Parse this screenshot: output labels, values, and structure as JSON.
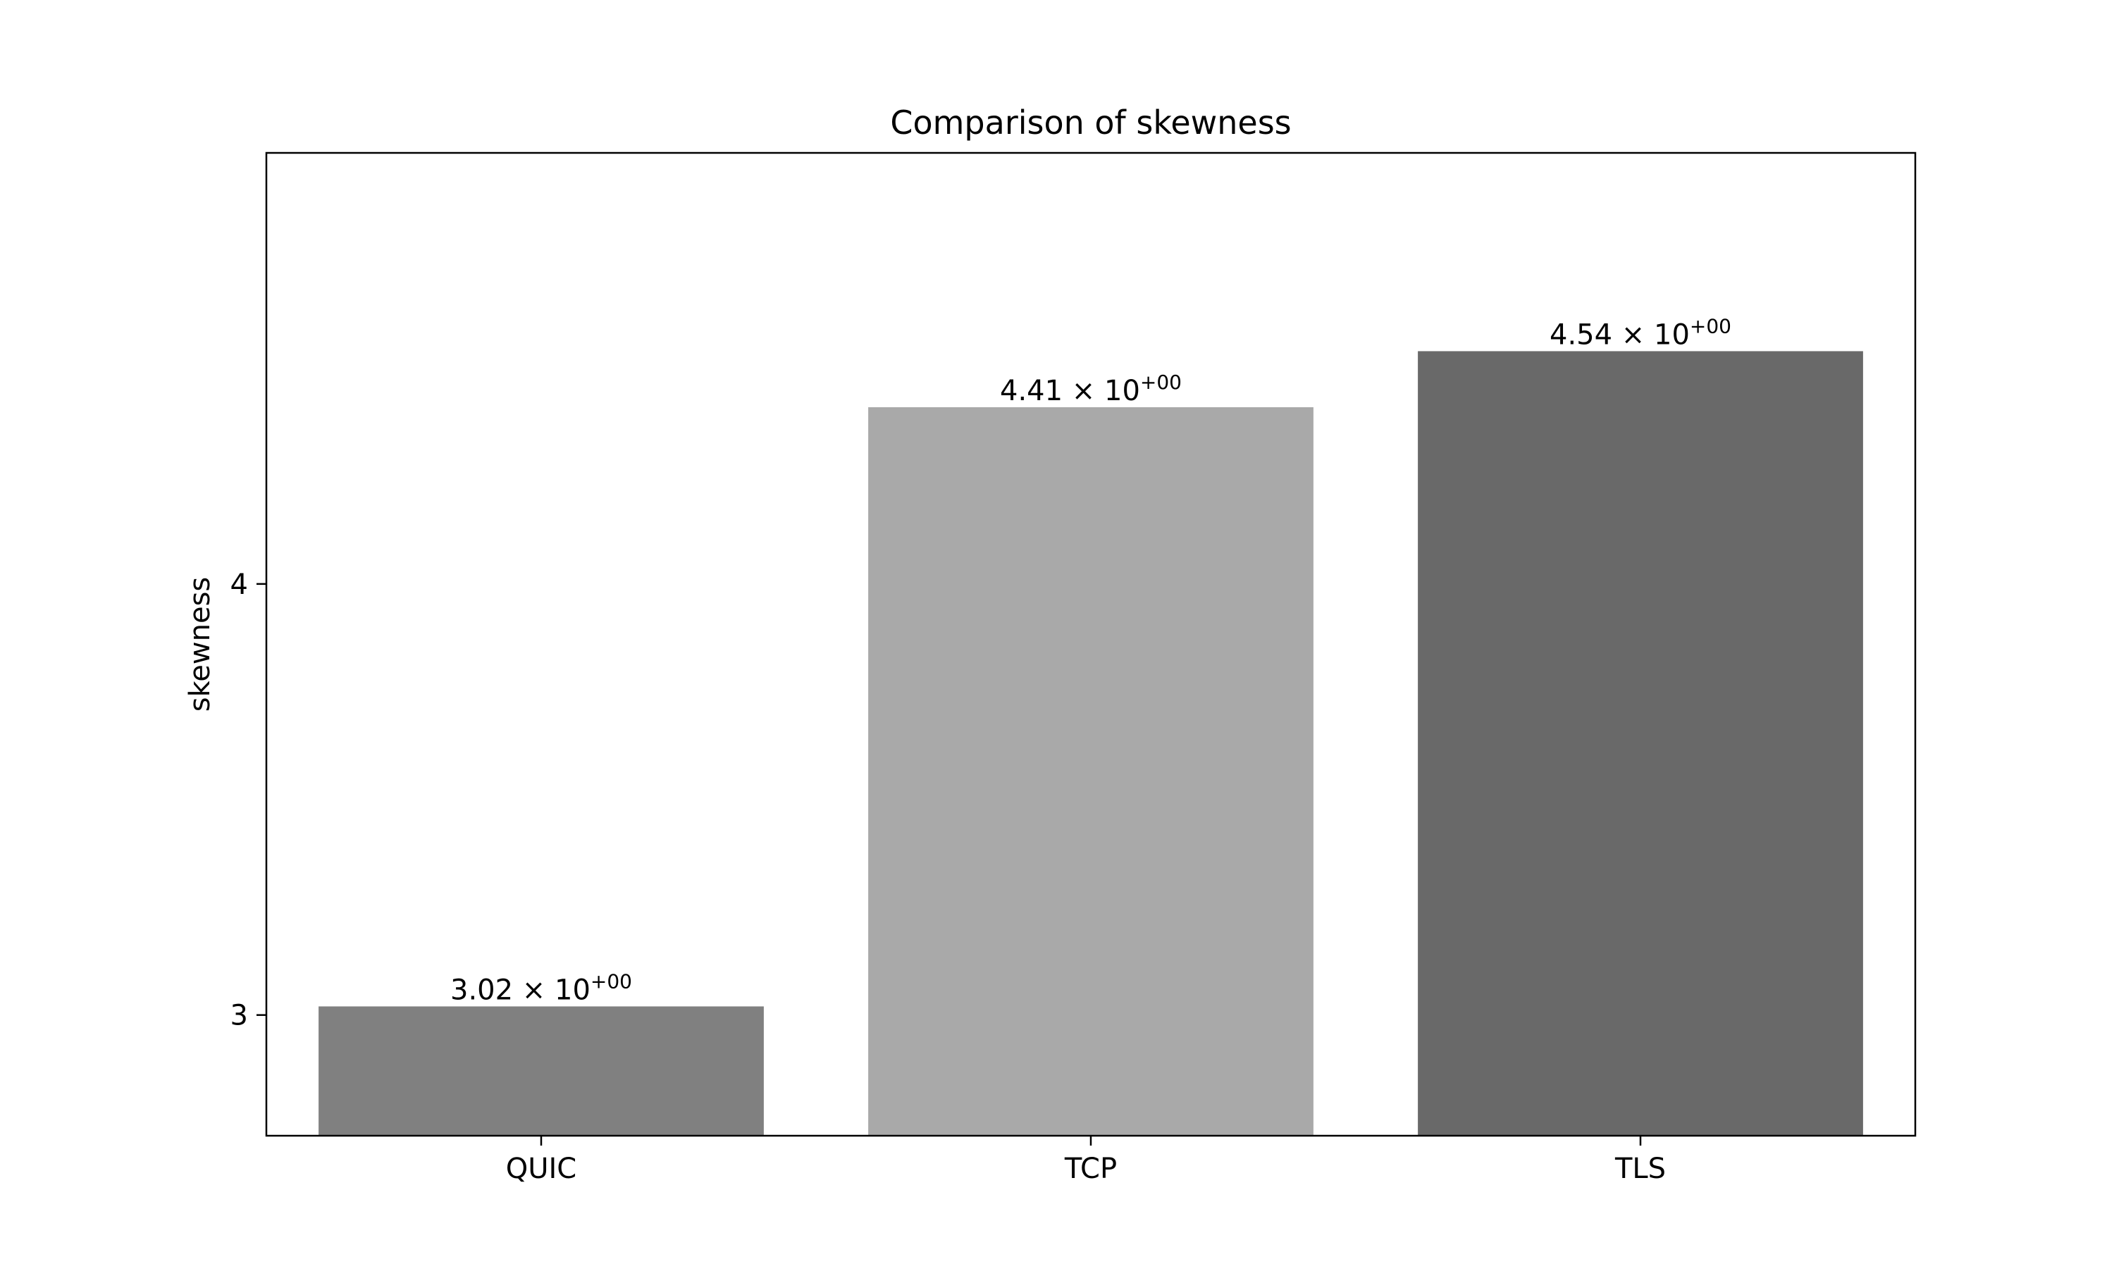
{
  "chart_data": {
    "type": "bar",
    "title": "Comparison of skewness",
    "xlabel": "",
    "ylabel": "skewness",
    "categories": [
      "QUIC",
      "TCP",
      "TLS"
    ],
    "values": [
      3.02,
      4.41,
      4.54
    ],
    "value_labels": [
      {
        "mantissa": "3.02",
        "times": "×",
        "base": "10",
        "exponent": "+00"
      },
      {
        "mantissa": "4.41",
        "times": "×",
        "base": "10",
        "exponent": "+00"
      },
      {
        "mantissa": "4.54",
        "times": "×",
        "base": "10",
        "exponent": "+00"
      }
    ],
    "bar_colors": [
      "#808080",
      "#a9a9a9",
      "#696969"
    ],
    "ylim": [
      2.72,
      5.0
    ],
    "yticks": [
      3,
      4
    ],
    "ytick_labels": [
      "3",
      "4"
    ],
    "grid": false,
    "legend": false
  }
}
